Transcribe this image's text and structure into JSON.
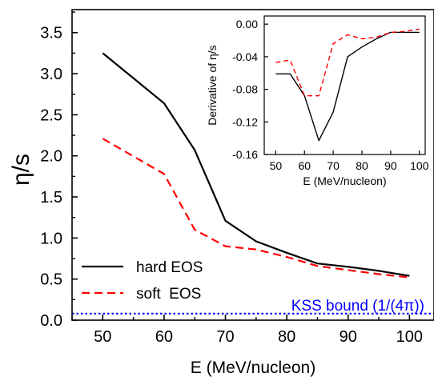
{
  "chart_data": [
    {
      "type": "line",
      "x": [
        50,
        60,
        65,
        70,
        75,
        80,
        85,
        90,
        95,
        100
      ],
      "xlabel": "E (MeV/nucleon)",
      "ylabel": "η/s",
      "xlim": [
        45,
        104
      ],
      "ylim": [
        0,
        3.78
      ],
      "xticks": [
        "50",
        "60",
        "70",
        "80",
        "90",
        "100"
      ],
      "yticks": [
        "0.0",
        "0.5",
        "1.0",
        "1.5",
        "2.0",
        "2.5",
        "3.0",
        "3.5"
      ],
      "series": [
        {
          "name": "hard EOS",
          "color": "#000000",
          "dash": "solid",
          "values": [
            3.25,
            2.64,
            2.07,
            1.21,
            0.96,
            0.82,
            0.69,
            0.65,
            0.6,
            0.54
          ]
        },
        {
          "name": "soft  EOS",
          "color": "#ff0000",
          "dash": "dashed",
          "values": [
            2.21,
            1.78,
            1.1,
            0.9,
            0.86,
            0.77,
            0.66,
            0.61,
            0.56,
            0.52
          ]
        }
      ],
      "reference_line": {
        "label": "KSS bound (1/(4π))",
        "value": 0.0796,
        "color": "#0000ff"
      },
      "legend": "bottom-left",
      "grid": false
    },
    {
      "type": "line",
      "x": [
        50,
        55,
        60,
        65,
        70,
        75,
        80,
        85,
        90,
        95,
        100
      ],
      "xlabel": "E (MeV/nucleon)",
      "ylabel": "Derivative of η/s",
      "xlim": [
        46,
        102
      ],
      "ylim": [
        -0.16,
        0.01
      ],
      "xticks": [
        "50",
        "60",
        "70",
        "80",
        "90",
        "100"
      ],
      "yticks": [
        "0.00",
        "-0.04",
        "-0.08",
        "-0.12",
        "-0.16"
      ],
      "series": [
        {
          "name": "hard EOS",
          "color": "#000000",
          "dash": "solid",
          "values": [
            -0.061,
            -0.061,
            -0.088,
            -0.143,
            -0.108,
            -0.04,
            -0.028,
            -0.018,
            -0.01,
            -0.01,
            -0.01
          ]
        },
        {
          "name": "soft EOS",
          "color": "#ff0000",
          "dash": "dashed",
          "values": [
            -0.047,
            -0.044,
            -0.088,
            -0.088,
            -0.024,
            -0.013,
            -0.018,
            -0.016,
            -0.01,
            -0.009,
            -0.006
          ]
        }
      ],
      "grid": false
    }
  ]
}
